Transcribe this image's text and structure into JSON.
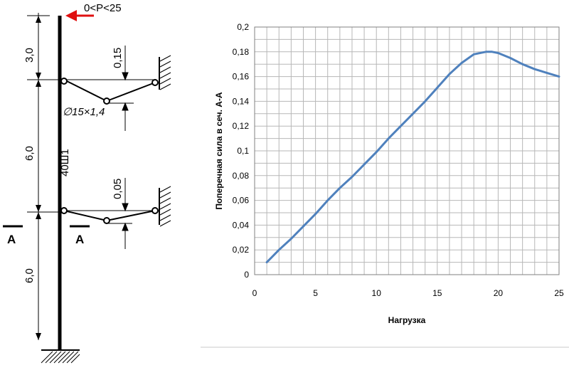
{
  "scheme": {
    "load_label": "0<P<25",
    "dims": [
      "3,0",
      "6,0",
      "6,0"
    ],
    "offsets": [
      "0,15",
      "0,05"
    ],
    "tie_label": "∅15×1,4",
    "column_label": "40Ш1",
    "section_labels": [
      "A",
      "A"
    ]
  },
  "colors": {
    "load_arrow": "#e01010",
    "series_line": "#4f81bd",
    "grid": "#b7b7b7"
  },
  "chart_data": {
    "type": "line",
    "xlabel": "Нагрузка",
    "ylabel": "Поперечная  сила  в сеч.  А-А",
    "xlim": [
      0,
      25
    ],
    "ylim": [
      0,
      0.2
    ],
    "x_ticks": [
      "0",
      "5",
      "10",
      "15",
      "20",
      "25"
    ],
    "y_ticks": [
      "0",
      "0,02",
      "0,04",
      "0,06",
      "0,08",
      "0,1",
      "0,12",
      "0,14",
      "0,16",
      "0,18",
      "0,2"
    ],
    "grid": true,
    "series": [
      {
        "x": [
          1,
          2,
          3,
          4,
          5,
          6,
          7,
          8,
          9,
          10,
          11,
          12,
          13,
          14,
          15,
          16,
          17,
          18,
          19,
          19.5,
          20,
          21,
          22,
          23,
          24,
          25
        ],
        "values": [
          0.01,
          0.02,
          0.029,
          0.039,
          0.049,
          0.06,
          0.07,
          0.079,
          0.089,
          0.099,
          0.11,
          0.12,
          0.13,
          0.14,
          0.151,
          0.162,
          0.171,
          0.178,
          0.18,
          0.18,
          0.179,
          0.175,
          0.17,
          0.166,
          0.163,
          0.16
        ]
      }
    ]
  }
}
